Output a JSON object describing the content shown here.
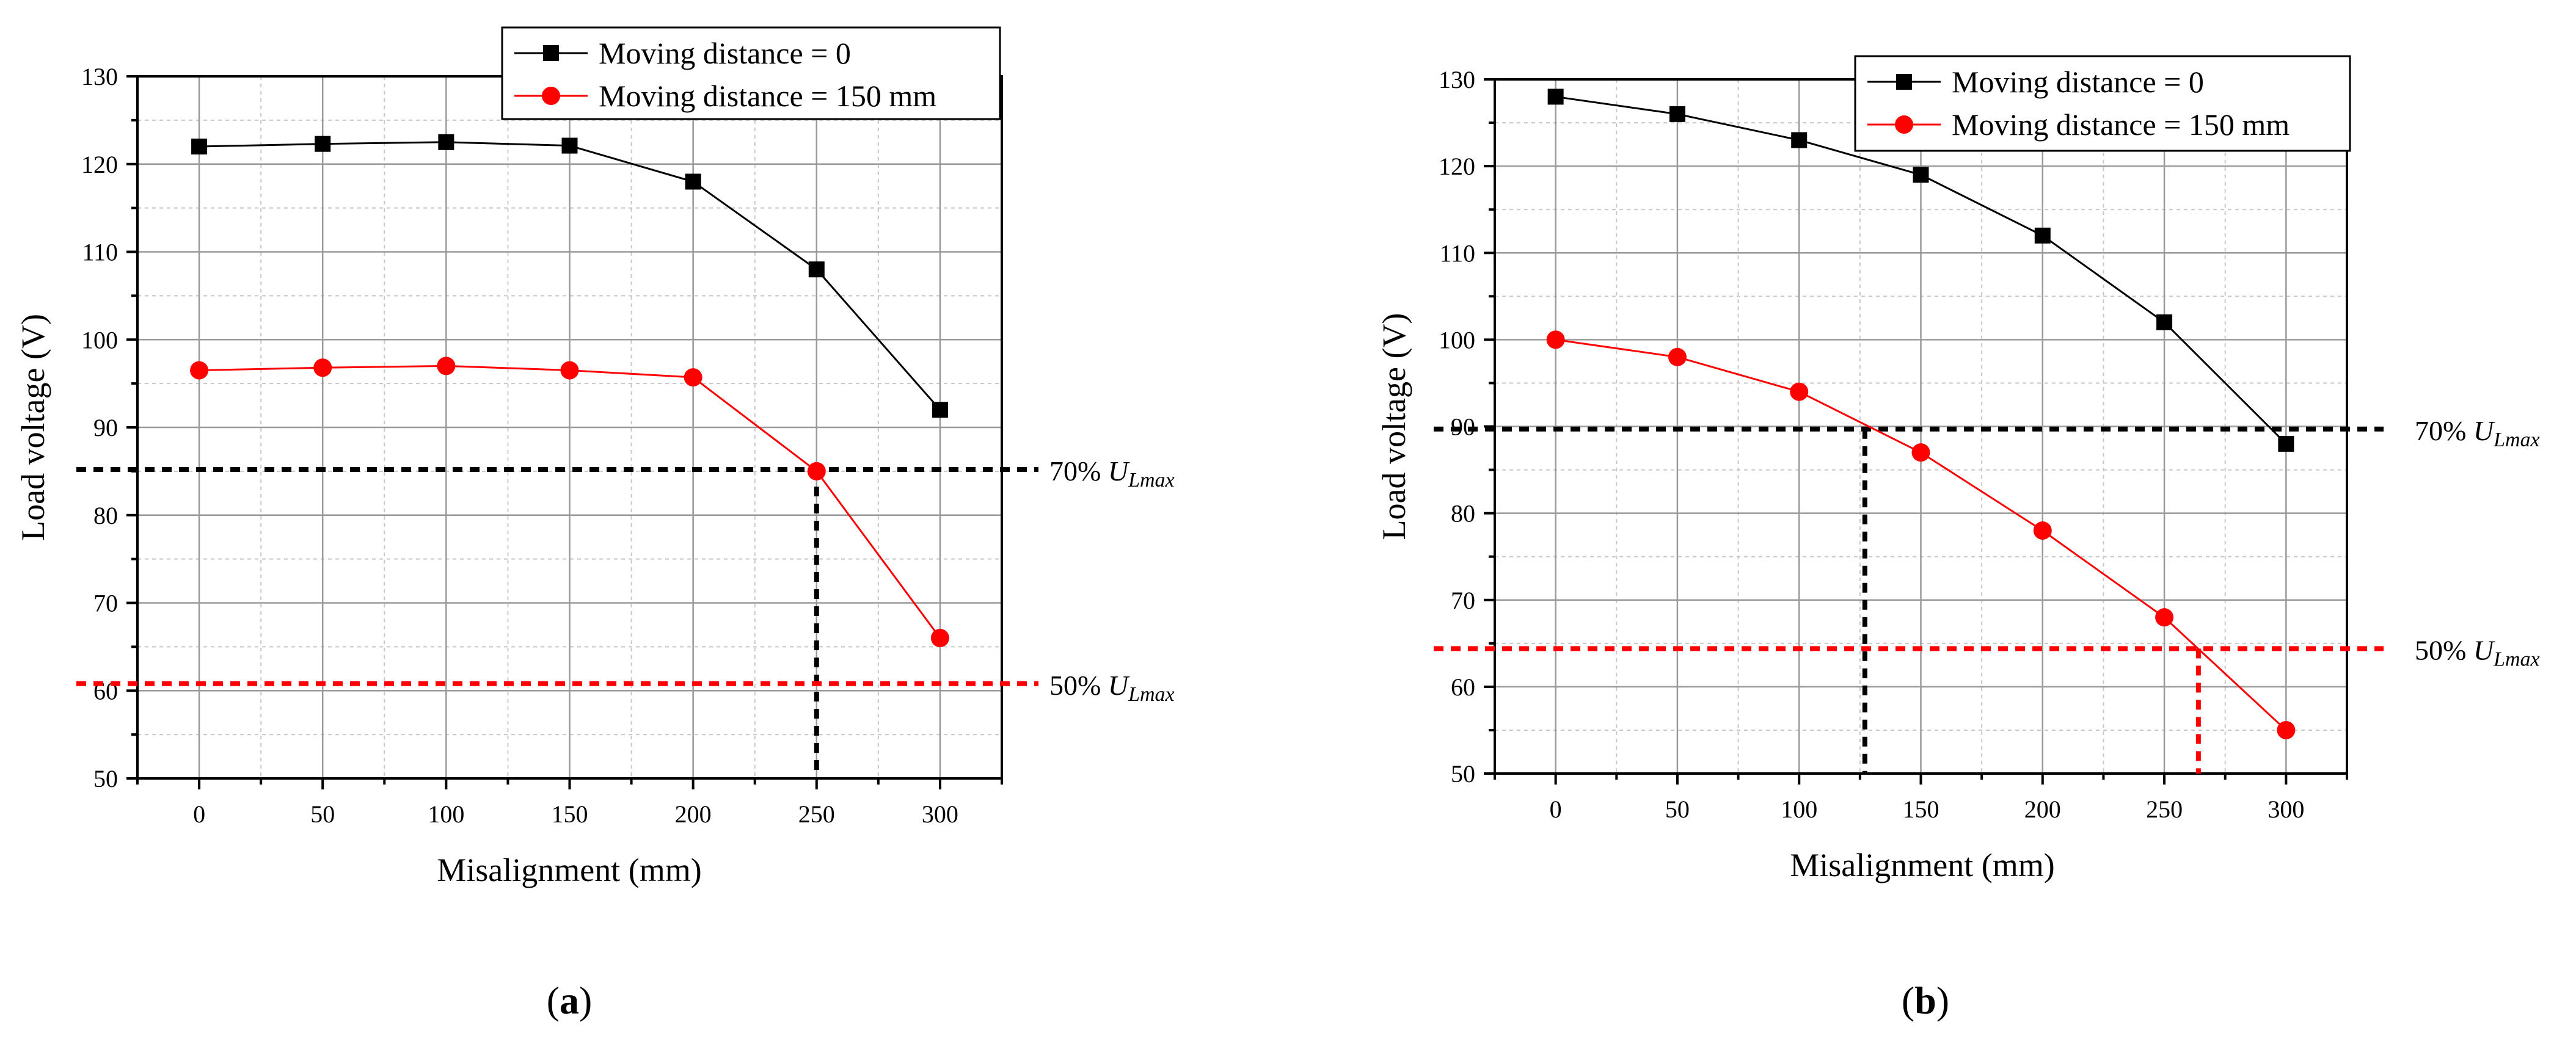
{
  "colors": {
    "black_series": "#000000",
    "red_series": "#ff0000",
    "grid": "#9a9a9a",
    "grid_minor": "#c8c8c8"
  },
  "chart_data": [
    {
      "type": "line",
      "panel_label": "(a)",
      "panel_letter": "a",
      "xlabel": "Misalignment (mm)",
      "ylabel": "Load voltage (V)",
      "xlim": [
        -25,
        325
      ],
      "ylim": [
        50,
        130
      ],
      "x_ticks": [
        "0",
        "50",
        "100",
        "150",
        "200",
        "250",
        "300"
      ],
      "y_ticks": [
        "50",
        "60",
        "70",
        "80",
        "90",
        "100",
        "110",
        "120",
        "130"
      ],
      "legend_position": "top-right",
      "series": [
        {
          "name": "Moving distance = 0",
          "color": "#000000",
          "marker": "square",
          "x": [
            0,
            50,
            100,
            150,
            200,
            250,
            300
          ],
          "y": [
            122,
            122.3,
            122.5,
            122.1,
            118,
            108,
            92
          ]
        },
        {
          "name": "Moving distance = 150 mm",
          "color": "#ff0000",
          "marker": "circle",
          "x": [
            0,
            50,
            100,
            150,
            200,
            250,
            300
          ],
          "y": [
            96.5,
            96.8,
            97,
            96.5,
            95.7,
            85,
            66
          ]
        }
      ],
      "thresholds": [
        {
          "label_prefix": "70% ",
          "label_var": "U",
          "label_sub": "Lmax",
          "value": 85.2,
          "color": "#000000",
          "drop_x": 250
        },
        {
          "label_prefix": "50% ",
          "label_var": "U",
          "label_sub": "Lmax",
          "value": 60.8,
          "color": "#ff0000",
          "drop_x": null
        }
      ]
    },
    {
      "type": "line",
      "panel_label": "(b)",
      "panel_letter": "b",
      "xlabel": "Misalignment (mm)",
      "ylabel": "Load voltage (V)",
      "xlim": [
        -25,
        325
      ],
      "ylim": [
        50,
        130
      ],
      "x_ticks": [
        "0",
        "50",
        "100",
        "150",
        "200",
        "250",
        "300"
      ],
      "y_ticks": [
        "50",
        "60",
        "70",
        "80",
        "90",
        "100",
        "110",
        "120",
        "130"
      ],
      "legend_position": "top-right",
      "series": [
        {
          "name": "Moving distance = 0",
          "color": "#000000",
          "marker": "square",
          "x": [
            0,
            50,
            100,
            150,
            200,
            250,
            300
          ],
          "y": [
            128,
            126,
            123,
            119,
            112,
            102,
            88
          ]
        },
        {
          "name": "Moving distance = 150 mm",
          "color": "#ff0000",
          "marker": "circle",
          "x": [
            0,
            50,
            100,
            150,
            200,
            250,
            300
          ],
          "y": [
            100,
            98,
            94,
            87,
            78,
            68,
            55
          ]
        }
      ],
      "thresholds": [
        {
          "label_prefix": "70% ",
          "label_var": "U",
          "label_sub": "Lmax",
          "value": 89.7,
          "color": "#000000",
          "drop_x": 127
        },
        {
          "label_prefix": "50% ",
          "label_var": "U",
          "label_sub": "Lmax",
          "value": 64.4,
          "color": "#ff0000",
          "drop_x": 264
        }
      ]
    }
  ]
}
